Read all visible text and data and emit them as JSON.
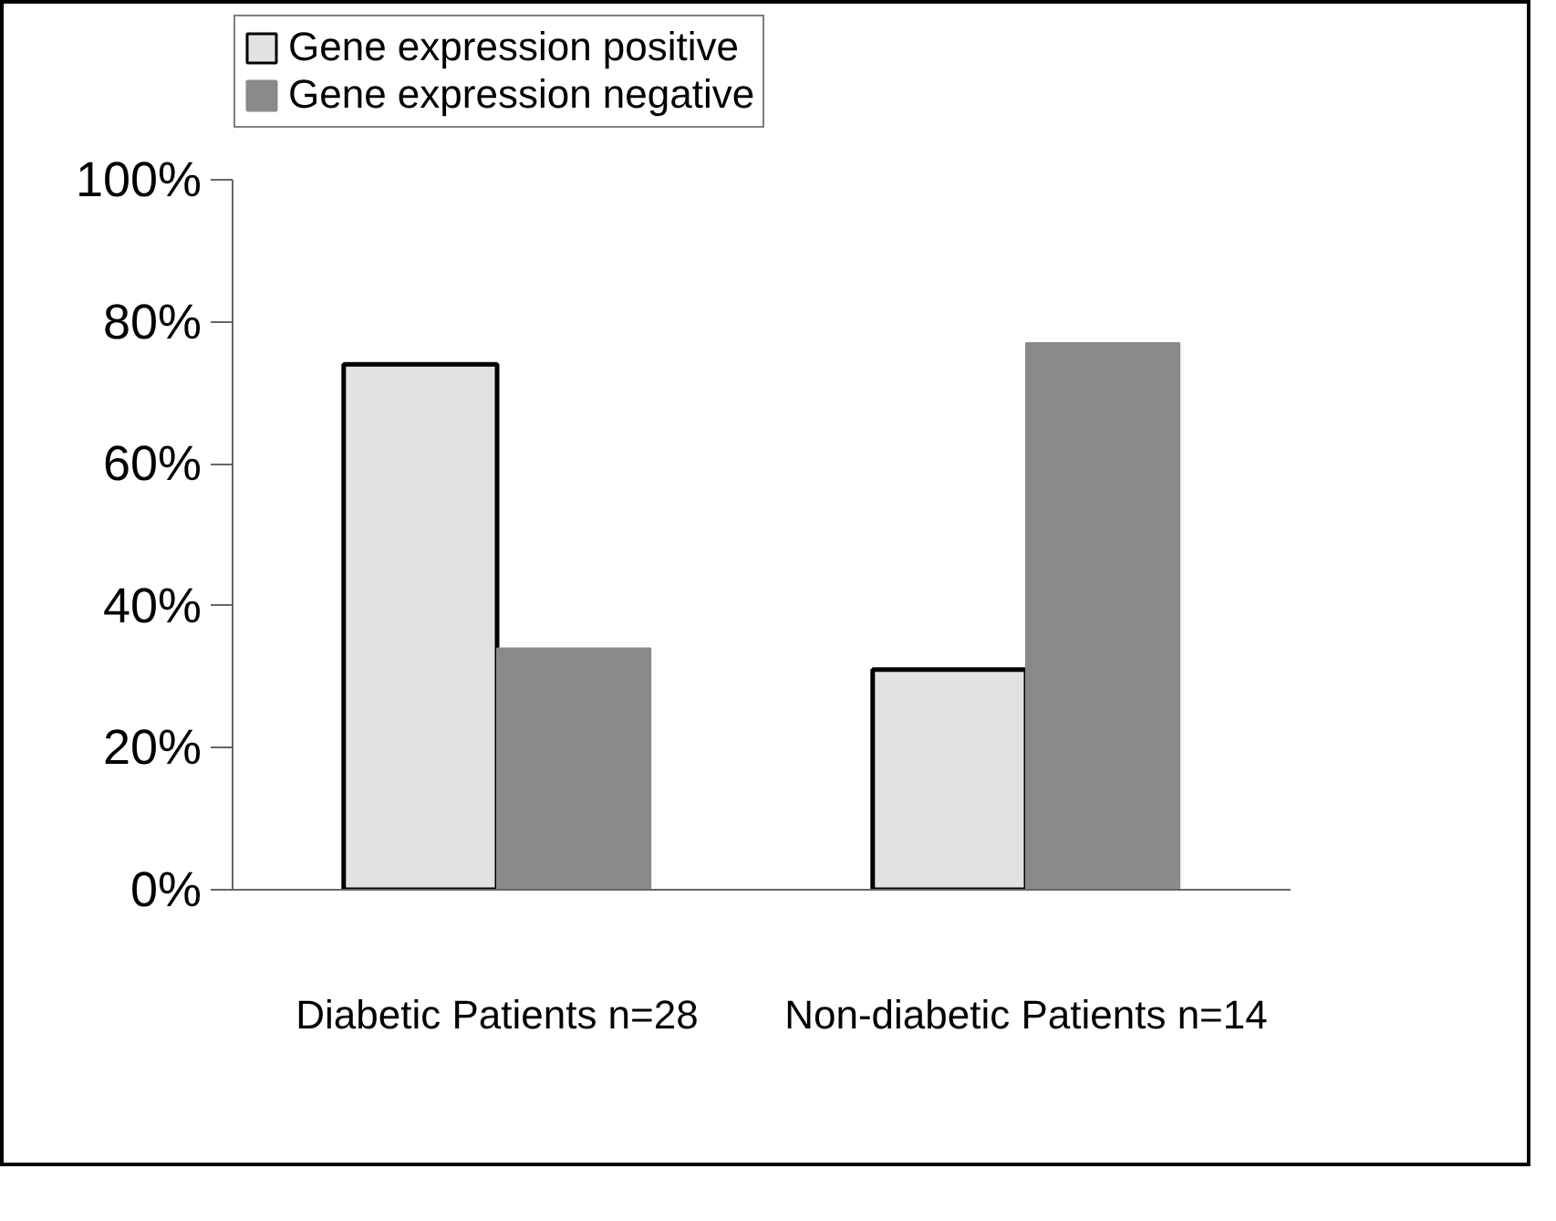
{
  "chart_data": {
    "type": "bar",
    "categories": [
      "Diabetic Patients n=28",
      "Non-diabetic Patients n=14"
    ],
    "series": [
      {
        "name": "Gene expression positive",
        "color": "#e2e2e2",
        "values": [
          74,
          31
        ]
      },
      {
        "name": "Gene expression negative",
        "color": "#8a8a8a",
        "values": [
          34,
          77
        ]
      }
    ],
    "ylim": [
      0,
      100
    ],
    "yticks": [
      {
        "value": 0,
        "label": "0%"
      },
      {
        "value": 20,
        "label": "20%"
      },
      {
        "value": 40,
        "label": "40%"
      },
      {
        "value": 60,
        "label": "60%"
      },
      {
        "value": 80,
        "label": "80%"
      },
      {
        "value": 100,
        "label": "100%"
      }
    ],
    "grid": false,
    "legend": "top"
  }
}
